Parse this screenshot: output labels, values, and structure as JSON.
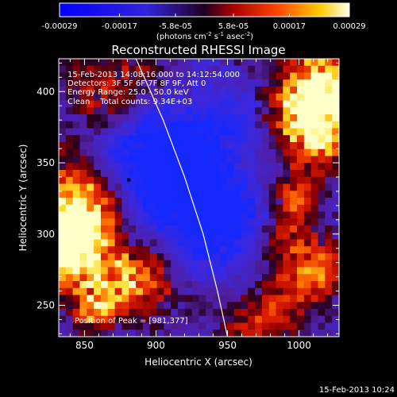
{
  "chart_data": {
    "type": "heatmap",
    "title": "Reconstructed RHESSI Image",
    "xlabel": "Heliocentric X (arcsec)",
    "ylabel": "Heliocentric Y (arcsec)",
    "xlim": [
      832,
      1028
    ],
    "ylim": [
      228,
      423
    ],
    "xticks": [
      850,
      900,
      950,
      1000
    ],
    "yticks": [
      250,
      300,
      350,
      400
    ],
    "colorbar": {
      "ticks": [
        "-0.00029",
        "-0.00017",
        "-5.8e-05",
        "5.8e-05",
        "0.00017",
        "0.00029"
      ],
      "unit_main": "(photons cm",
      "unit_sup1": "-2",
      "unit_mid": " s",
      "unit_sup2": "-1",
      "unit_tail": " asec",
      "unit_sup3": "-2",
      "unit_close": ")",
      "range": [
        -0.00029,
        0.00029
      ]
    },
    "annotations": [
      "15-Feb-2013 14:08:16.000 to 14:12:54.000",
      "Detectors: 3F 5F 6F 7F 8F 9F, Att 0",
      "Energy Range: 25.0 - 50.0 keV",
      "Clean    Total counts: 9.34E+03"
    ],
    "peak_label": "Position of Peak = [981,377]",
    "peak_position": [
      981,
      377
    ],
    "marker_position": [
      881,
      338
    ],
    "limb_curve": [
      [
        886,
        423
      ],
      [
        905,
        380
      ],
      [
        920,
        340
      ],
      [
        933,
        300
      ],
      [
        943,
        260
      ],
      [
        950,
        228
      ]
    ],
    "timestamp": "15-Feb-2013 10:24"
  },
  "colors": {
    "background": "#000000",
    "text": "#ffffff",
    "blue": "#2233ff",
    "purple": "#5522cc",
    "red": "#cc1100",
    "orange": "#ff6600",
    "yellow": "#ffff66"
  }
}
